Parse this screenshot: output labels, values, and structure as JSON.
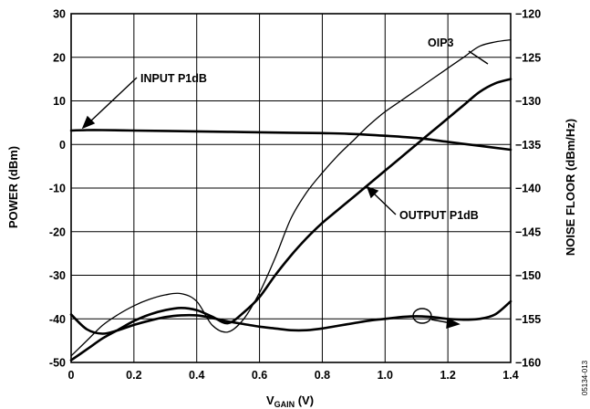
{
  "chart_data": {
    "type": "line",
    "xlabel_main": "V",
    "xlabel_sub": "GAIN",
    "xlabel_unit": " (V)",
    "ylabel_left": "POWER (dBm)",
    "ylabel_right": "NOISE FLOOR (dBm/Hz)",
    "xlim": [
      0,
      1.4
    ],
    "ylim_left": [
      -50,
      30
    ],
    "ylim_right": [
      -160,
      -120
    ],
    "grid": true,
    "x_ticks": [
      "0",
      "0.2",
      "0.4",
      "0.6",
      "0.8",
      "1.0",
      "1.2",
      "1.4"
    ],
    "y_ticks_left": [
      "30",
      "20",
      "10",
      "0",
      "-10",
      "-20",
      "-30",
      "-40",
      "-50"
    ],
    "y_ticks_right": [
      "−120",
      "−125",
      "−130",
      "−135",
      "−140",
      "−145",
      "−150",
      "−155",
      "−160"
    ],
    "figure_code": "05134-013",
    "series": [
      {
        "name": "OIP3",
        "axis": "left",
        "x": [
          0,
          0.05,
          0.1,
          0.15,
          0.2,
          0.25,
          0.3,
          0.35,
          0.4,
          0.45,
          0.5,
          0.55,
          0.6,
          0.65,
          0.7,
          0.75,
          0.8,
          0.85,
          0.9,
          0.95,
          1.0,
          1.05,
          1.1,
          1.15,
          1.2,
          1.25,
          1.3,
          1.35,
          1.4
        ],
        "y": [
          -48.5,
          -45,
          -41.5,
          -39,
          -37,
          -35.5,
          -34.5,
          -34.2,
          -36,
          -41.5,
          -43,
          -40,
          -34,
          -26,
          -17,
          -11,
          -6.5,
          -2.5,
          1,
          4.5,
          7.5,
          10,
          12.5,
          15,
          17.5,
          20,
          22.5,
          23.5,
          24
        ]
      },
      {
        "name": "OUTPUT P1dB",
        "axis": "left",
        "x": [
          0,
          0.05,
          0.1,
          0.15,
          0.2,
          0.25,
          0.3,
          0.35,
          0.4,
          0.45,
          0.5,
          0.55,
          0.6,
          0.65,
          0.7,
          0.75,
          0.8,
          0.85,
          0.9,
          0.95,
          1.0,
          1.05,
          1.1,
          1.15,
          1.2,
          1.25,
          1.3,
          1.35,
          1.4
        ],
        "y": [
          -49.5,
          -47,
          -44.5,
          -42.5,
          -40.5,
          -39,
          -38,
          -37.5,
          -38,
          -39.5,
          -41,
          -38.5,
          -35,
          -30,
          -25.5,
          -21.5,
          -18,
          -15,
          -12,
          -9,
          -6,
          -3,
          0,
          3,
          6,
          9,
          12,
          14,
          15
        ]
      },
      {
        "name": "INPUT P1dB",
        "axis": "left",
        "x": [
          0,
          0.05,
          0.1,
          0.2,
          0.3,
          0.4,
          0.5,
          0.6,
          0.7,
          0.8,
          0.9,
          1.0,
          1.1,
          1.2,
          1.3,
          1.4
        ],
        "y": [
          3.2,
          3.3,
          3.3,
          3.2,
          3.1,
          3.0,
          2.9,
          2.8,
          2.7,
          2.6,
          2.4,
          2.0,
          1.5,
          0.6,
          -0.3,
          -1.2
        ]
      },
      {
        "name": "NOISE FLOOR",
        "axis": "right",
        "x": [
          0,
          0.05,
          0.1,
          0.15,
          0.2,
          0.25,
          0.3,
          0.35,
          0.4,
          0.45,
          0.5,
          0.55,
          0.6,
          0.65,
          0.7,
          0.75,
          0.8,
          0.85,
          0.9,
          0.95,
          1.0,
          1.05,
          1.1,
          1.15,
          1.2,
          1.25,
          1.3,
          1.35,
          1.4
        ],
        "y": [
          -154.5,
          -156.2,
          -156.7,
          -156.3,
          -155.7,
          -155.2,
          -154.8,
          -154.6,
          -154.6,
          -154.9,
          -155.3,
          -155.6,
          -155.9,
          -156.1,
          -156.3,
          -156.3,
          -156.1,
          -155.8,
          -155.5,
          -155.2,
          -155.0,
          -154.8,
          -154.7,
          -154.8,
          -155.0,
          -155.1,
          -155.0,
          -154.5,
          -153.0
        ]
      }
    ],
    "annotations": [
      {
        "text": "OIP3"
      },
      {
        "text": "INPUT P1dB"
      },
      {
        "text": "OUTPUT P1dB"
      }
    ]
  }
}
